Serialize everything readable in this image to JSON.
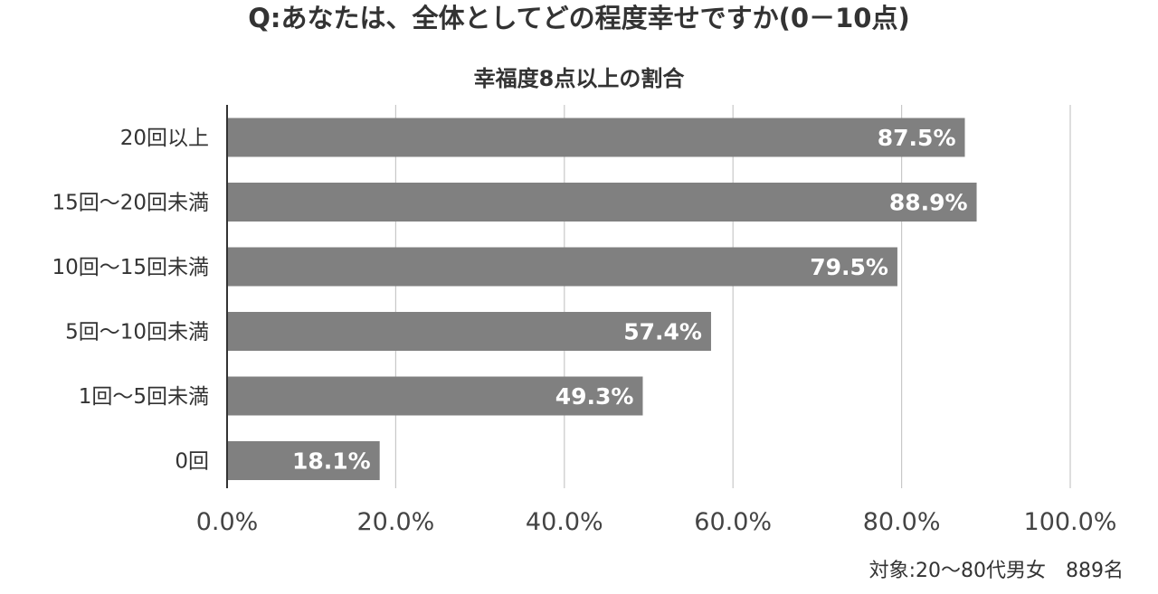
{
  "header": {
    "question": "Q:あなたは、全体としてどの程度幸せですか(0－10点)"
  },
  "chart_data": {
    "type": "bar",
    "orientation": "horizontal",
    "title": "幸福度8点以上の割合",
    "categories": [
      "20回以上",
      "15回～20回未満",
      "10回～15回未満",
      "5回～10回未満",
      "1回～5回未満",
      "0回"
    ],
    "values": [
      87.5,
      88.9,
      79.5,
      57.4,
      49.3,
      18.1
    ],
    "value_labels": [
      "87.5%",
      "88.9%",
      "79.5%",
      "57.4%",
      "49.3%",
      "18.1%"
    ],
    "xlim": [
      0,
      100
    ],
    "xticks": [
      0,
      20,
      40,
      60,
      80,
      100
    ],
    "xtick_labels": [
      "0.0%",
      "20.0%",
      "40.0%",
      "60.0%",
      "80.0%",
      "100.0%"
    ],
    "grid": true,
    "bar_color": "#808080",
    "label_color": "#ffffff"
  },
  "footer": {
    "note": "対象:20～80代男女　889名"
  }
}
